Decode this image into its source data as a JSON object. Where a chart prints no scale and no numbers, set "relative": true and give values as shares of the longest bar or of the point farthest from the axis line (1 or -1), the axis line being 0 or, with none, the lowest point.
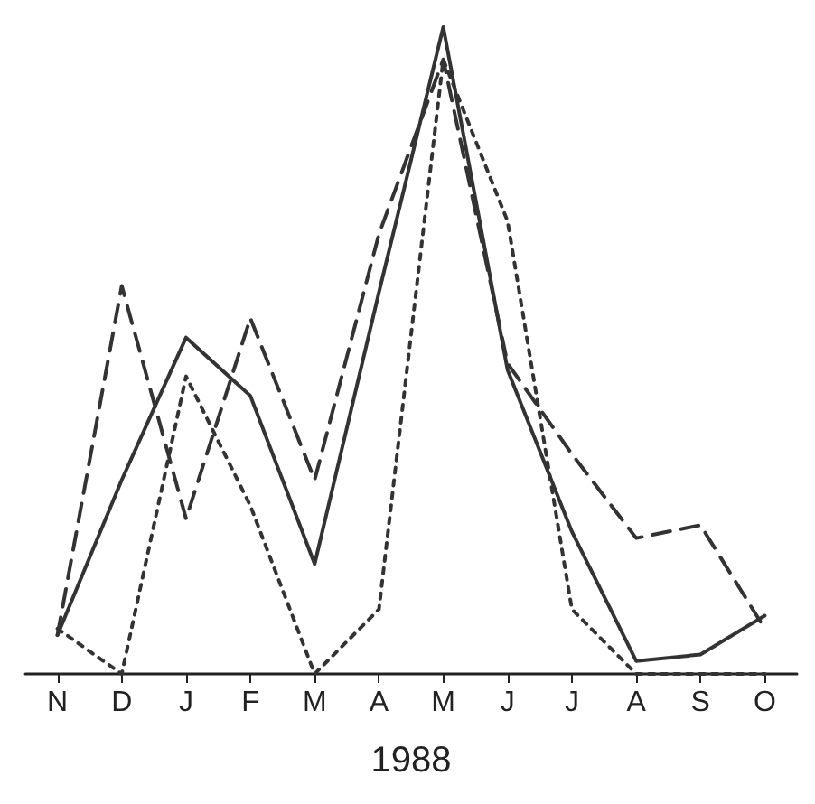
{
  "chart_data": {
    "type": "line",
    "xlabel": "1988",
    "categories": [
      "N",
      "D",
      "J",
      "F",
      "M",
      "A",
      "M",
      "J",
      "J",
      "A",
      "S",
      "O"
    ],
    "relative": true,
    "tick_labels": "x",
    "marker": "none",
    "series": [
      {
        "color": "#333333",
        "line_style": "solid",
        "values": [
          0.06,
          0.3,
          0.52,
          0.43,
          0.17,
          0.59,
          1,
          0.47,
          0.22,
          0.02,
          0.03,
          0.09
        ]
      },
      {
        "color": "#333333",
        "line_style": "dashed",
        "values": [
          0.06,
          0.6,
          0.24,
          0.55,
          0.3,
          0.68,
          0.95,
          0.48,
          0.34,
          0.21,
          0.23,
          0.07
        ]
      },
      {
        "color": "#333333",
        "line_style": "dotted",
        "values": [
          0.07,
          0,
          0.46,
          0.26,
          0,
          0.1,
          0.95,
          0.7,
          0.1,
          0,
          0,
          0
        ]
      }
    ]
  }
}
